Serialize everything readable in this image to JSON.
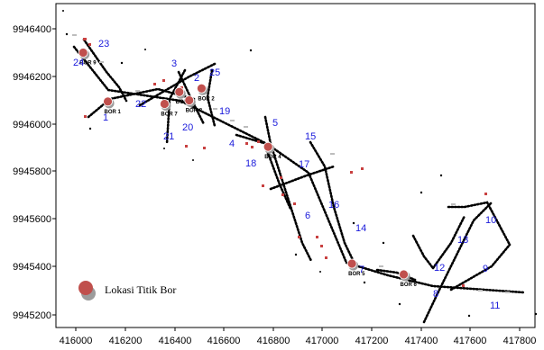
{
  "map": {
    "y_ticks": [
      "9946400",
      "9946200",
      "9946000",
      "9945800",
      "9945600",
      "9945400",
      "9945200"
    ],
    "x_ticks": [
      "416000",
      "416200",
      "416400",
      "416600",
      "416800",
      "417000",
      "417200",
      "417400",
      "417600",
      "417800"
    ],
    "line_labels": [
      "1",
      "2",
      "3",
      "4",
      "5",
      "6",
      "7",
      "8",
      "9",
      "10",
      "11",
      "12",
      "13",
      "14",
      "15",
      "16",
      "17",
      "18",
      "19",
      "20",
      "21",
      "22",
      "23",
      "24",
      "25"
    ],
    "boreholes": [
      {
        "name": "BOR 9",
        "x": 416030,
        "y": 9946300
      },
      {
        "name": "BOR 1",
        "x": 416130,
        "y": 9946095
      },
      {
        "name": "BOR 7",
        "x": 416360,
        "y": 9946085
      },
      {
        "name": "BOR 2",
        "x": 416510,
        "y": 9946150
      },
      {
        "name": "BOR 3",
        "x": 416420,
        "y": 9946135
      },
      {
        "name": "BOR 8",
        "x": 416460,
        "y": 9946100
      },
      {
        "name": "BOR 4",
        "x": 416780,
        "y": 9945905
      },
      {
        "name": "BOR 5",
        "x": 417120,
        "y": 9945415
      },
      {
        "name": "BOR 6",
        "x": 417330,
        "y": 9945370
      }
    ],
    "legend_label": "Lokasi Titik Bor",
    "colors": {
      "borehole": "#c0504d",
      "borehole_shadow": "#9c9c9c",
      "line_label": "#1a1adb",
      "track": "#000000"
    }
  }
}
